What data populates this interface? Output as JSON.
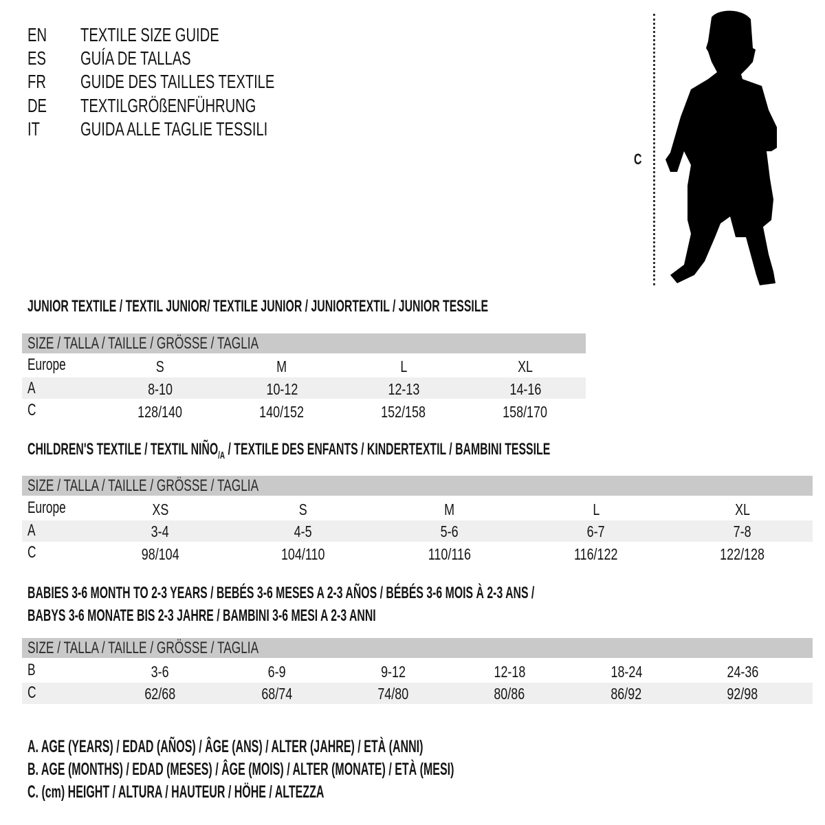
{
  "languages": [
    {
      "code": "EN",
      "title": "TEXTILE SIZE GUIDE"
    },
    {
      "code": "ES",
      "title": "GUÍA DE TALLAS"
    },
    {
      "code": "FR",
      "title": "GUIDE DES TAILLES TEXTILE"
    },
    {
      "code": "DE",
      "title": "TEXTILGRÖßENFÜHRUNG"
    },
    {
      "code": "IT",
      "title": "GUIDA ALLE TAGLIE TESSILI"
    }
  ],
  "figure": {
    "measure_label": "C",
    "icon": "child-silhouette-icon"
  },
  "junior": {
    "heading": "JUNIOR TEXTILE / TEXTIL JUNIOR/ TEXTILE JUNIOR / JUNIORTEXTIL / JUNIOR TESSILE",
    "header": "SIZE / TALLA / TAILLE / GRÖSSE / TAGLIA",
    "rows": [
      {
        "label": "Europe",
        "values": [
          "S",
          "M",
          "L",
          "XL"
        ]
      },
      {
        "label": "A",
        "values": [
          "8-10",
          "10-12",
          "12-13",
          "14-16"
        ]
      },
      {
        "label": "C",
        "values": [
          "128/140",
          "140/152",
          "152/158",
          "158/170"
        ]
      }
    ]
  },
  "children": {
    "heading_pre": "CHILDREN'S TEXTILE / TEXTIL NIÑO",
    "heading_sub": "/A",
    "heading_post": " / TEXTILE DES ENFANTS / KINDERTEXTIL / BAMBINI TESSILE",
    "header": "SIZE / TALLA / TAILLE / GRÖSSE / TAGLIA",
    "rows": [
      {
        "label": "Europe",
        "values": [
          "XS",
          "S",
          "M",
          "L",
          "XL"
        ]
      },
      {
        "label": "A",
        "values": [
          "3-4",
          "4-5",
          "5-6",
          "6-7",
          "7-8"
        ]
      },
      {
        "label": "C",
        "values": [
          "98/104",
          "104/110",
          "110/116",
          "116/122",
          "122/128"
        ]
      }
    ]
  },
  "babies": {
    "heading_line1": "BABIES 3-6 MONTH TO 2-3 YEARS / BEBÉS 3-6 MESES A 2-3 AÑOS / BÉBÉS 3-6 MOIS À 2-3 ANS /",
    "heading_line2": "BABYS 3-6 MONATE BIS 2-3 JAHRE / BAMBINI 3-6 MESI A 2-3 ANNI",
    "header": "SIZE / TALLA / TAILLE / GRÖSSE / TAGLIA",
    "rows": [
      {
        "label": "B",
        "values": [
          "3-6",
          "6-9",
          "9-12",
          "12-18",
          "18-24",
          "24-36"
        ]
      },
      {
        "label": "C",
        "values": [
          "62/68",
          "68/74",
          "74/80",
          "80/86",
          "86/92",
          "92/98"
        ]
      }
    ]
  },
  "legend": [
    "A. AGE (YEARS) / EDAD (AÑOS) / ÂGE (ANS) / ALTER (JAHRE) / ETÀ (ANNI)",
    "B. AGE (MONTHS) / EDAD (MESES) / ÂGE (MOIS) / ALTER (MONATE) / ETÀ (MESI)",
    "C. (cm) HEIGHT / ALTURA / HAUTEUR / HÖHE / ALTEZZA"
  ],
  "colors": {
    "header_bar": "#c9c9c9",
    "row_band": "#efefef",
    "text": "#141414"
  }
}
